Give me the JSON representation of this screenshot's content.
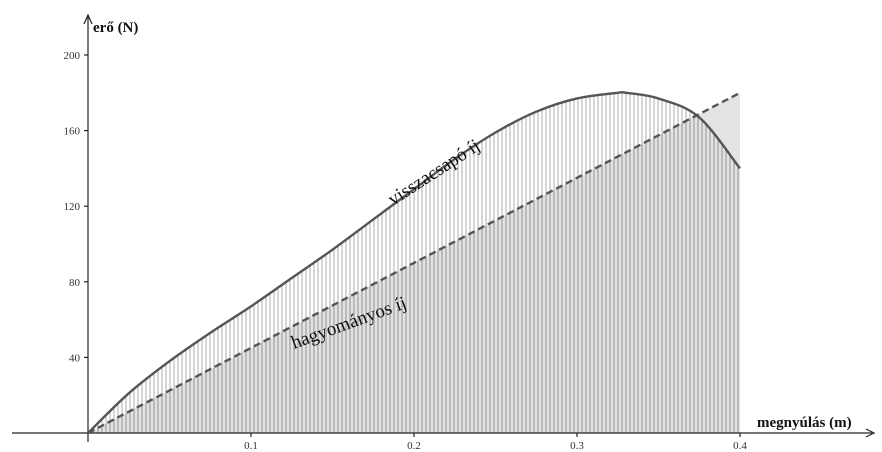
{
  "chart_data": {
    "type": "line",
    "title": "",
    "xlabel": "megnyúlás (m)",
    "ylabel": "erő (N)",
    "xlim": [
      0,
      0.4
    ],
    "ylim": [
      0,
      200
    ],
    "x_ticks": [
      {
        "value": 0.1,
        "label": "0.1"
      },
      {
        "value": 0.2,
        "label": "0.2"
      },
      {
        "value": 0.3,
        "label": "0.3"
      },
      {
        "value": 0.4,
        "label": "0.4"
      }
    ],
    "y_ticks": [
      {
        "value": 40,
        "label": "40"
      },
      {
        "value": 80,
        "label": "80"
      },
      {
        "value": 120,
        "label": "120"
      },
      {
        "value": 160,
        "label": "160"
      },
      {
        "value": 200,
        "label": "200"
      }
    ],
    "grid": false,
    "series": [
      {
        "name": "visszacsapó íj",
        "style": "solid",
        "color": "#555555",
        "fill": "vertical-hatch",
        "x": [
          0,
          0.025,
          0.05,
          0.075,
          0.1,
          0.125,
          0.15,
          0.175,
          0.2,
          0.225,
          0.25,
          0.275,
          0.3,
          0.325,
          0.33,
          0.35,
          0.375,
          0.4
        ],
        "y": [
          0,
          21,
          38,
          53,
          67,
          82,
          97,
          113,
          129,
          145,
          159,
          170,
          177,
          180,
          180,
          177,
          167,
          140
        ]
      },
      {
        "name": "hagyományos íj",
        "style": "dashed",
        "color": "#555555",
        "fill": "dense-vertical-hatch",
        "x": [
          0,
          0.4
        ],
        "y": [
          0,
          180
        ]
      }
    ]
  }
}
